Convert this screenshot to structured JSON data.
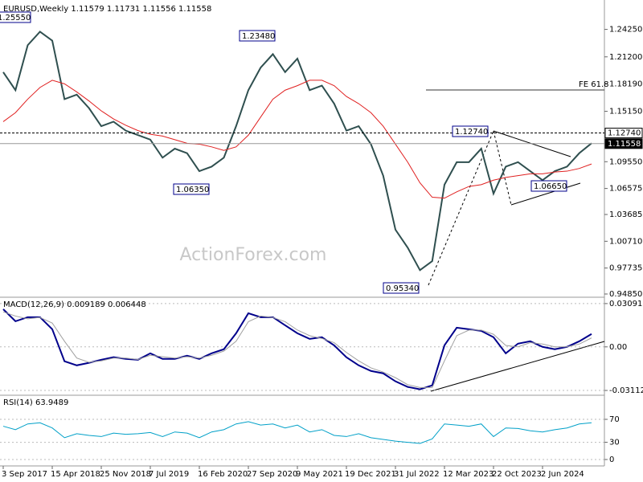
{
  "watermark": "ActionForex.com",
  "chart_data": [
    {
      "type": "line",
      "title": "EURUSD,Weekly  1.11579 1.11731 1.11556 1.11558",
      "categories": [
        "3 Sep 2017",
        null,
        null,
        null,
        "15 Apr 2018",
        null,
        null,
        null,
        "25 Nov 2018",
        null,
        null,
        null,
        "7 Jul 2019",
        null,
        null,
        null,
        "16 Feb 2020",
        null,
        null,
        null,
        "27 Sep 2020",
        null,
        null,
        null,
        "9 May 2021",
        null,
        null,
        null,
        "19 Dec 2021",
        null,
        null,
        null,
        "31 Jul 2022",
        null,
        null,
        null,
        "12 Mar 2023",
        null,
        null,
        null,
        "22 Oct 2023",
        null,
        null,
        null,
        "2 Jun 2024",
        null,
        null,
        null,
        null
      ],
      "series": [
        {
          "color": "#2f4f4f",
          "values": [
            1.195,
            1.175,
            1.225,
            1.24,
            1.23,
            1.165,
            1.17,
            1.155,
            1.135,
            1.14,
            1.13,
            1.125,
            1.12,
            1.1,
            1.11,
            1.105,
            1.085,
            1.09,
            1.1,
            1.135,
            1.175,
            1.2,
            1.215,
            1.195,
            1.21,
            1.175,
            1.18,
            1.16,
            1.13,
            1.135,
            1.115,
            1.08,
            1.02,
            1.0,
            0.975,
            0.985,
            1.07,
            1.095,
            1.095,
            1.11,
            1.06,
            1.09,
            1.095,
            1.085,
            1.075,
            1.085,
            1.09,
            1.105,
            1.116
          ]
        },
        {
          "color": "#e02020",
          "values": [
            1.14,
            1.15,
            1.165,
            1.178,
            1.186,
            1.182,
            1.173,
            1.163,
            1.152,
            1.143,
            1.136,
            1.13,
            1.126,
            1.124,
            1.12,
            1.116,
            1.115,
            1.112,
            1.108,
            1.112,
            1.125,
            1.145,
            1.165,
            1.175,
            1.18,
            1.186,
            1.186,
            1.18,
            1.168,
            1.16,
            1.15,
            1.135,
            1.115,
            1.095,
            1.072,
            1.056,
            1.055,
            1.062,
            1.068,
            1.07,
            1.075,
            1.078,
            1.08,
            1.082,
            1.082,
            1.084,
            1.085,
            1.088,
            1.093
          ]
        }
      ],
      "ylim": [
        0.9467,
        1.2716
      ],
      "yticks": [
        {
          "value": 1.2425,
          "label": "1.24250"
        },
        {
          "value": 1.212,
          "label": "1.21200"
        },
        {
          "value": 1.1819,
          "label": "1.18190"
        },
        {
          "value": 1.1515,
          "label": "1.15150"
        },
        {
          "value": 1.0955,
          "label": "1.09550"
        },
        {
          "value": 1.06575,
          "label": "1.06575"
        },
        {
          "value": 1.03685,
          "label": "1.03685"
        },
        {
          "value": 1.0071,
          "label": "1.00710"
        },
        {
          "value": 0.97735,
          "label": "0.97735"
        },
        {
          "value": 0.9485,
          "label": "0.94850"
        }
      ],
      "levels": [
        {
          "value": 1.1274,
          "label": "1.12740"
        },
        {
          "value": 1.11558,
          "label": "1.11558"
        }
      ],
      "annotations": [
        "1.25550",
        "1.23480",
        "1.06350",
        "0.95340",
        "1.06650",
        "FE 61.8"
      ]
    },
    {
      "type": "line",
      "title": "MACD(12,26,9) 0.009189 0.006448",
      "series": [
        {
          "color": "#00008b",
          "values": [
            0.0269,
            0.0183,
            0.0212,
            0.0212,
            0.0126,
            -0.0103,
            -0.0132,
            -0.0114,
            -0.0092,
            -0.0074,
            -0.0086,
            -0.0092,
            -0.0046,
            -0.0086,
            -0.0086,
            -0.0063,
            -0.0086,
            -0.0046,
            -0.0017,
            0.0097,
            0.024,
            0.0212,
            0.0212,
            0.0154,
            0.0097,
            0.0057,
            0.0069,
            0.0011,
            -0.0074,
            -0.0132,
            -0.0172,
            -0.0189,
            -0.0246,
            -0.0286,
            -0.0303,
            -0.0275,
            0.0011,
            0.0137,
            0.0126,
            0.0114,
            0.0069,
            -0.0046,
            0.0023,
            0.004,
            0.0,
            -0.0017,
            0.0,
            0.004,
            0.0092
          ]
        },
        {
          "color": "#a0a0a0",
          "values": [
            0.025,
            0.022,
            0.02,
            0.021,
            0.017,
            0.004,
            -0.008,
            -0.011,
            -0.01,
            -0.008,
            -0.008,
            -0.009,
            -0.006,
            -0.007,
            -0.008,
            -0.007,
            -0.008,
            -0.006,
            -0.003,
            0.004,
            0.018,
            0.022,
            0.021,
            0.018,
            0.012,
            0.008,
            0.006,
            0.003,
            -0.004,
            -0.01,
            -0.015,
            -0.018,
            -0.022,
            -0.027,
            -0.029,
            -0.029,
            -0.01,
            0.008,
            0.012,
            0.012,
            0.009,
            0.001,
            0.0,
            0.003,
            0.002,
            0.0,
            0.0,
            0.002,
            0.0064
          ]
        }
      ],
      "ylim": [
        -0.0334,
        0.0343
      ],
      "yticks": [
        0.030916,
        {
          "value": 0,
          "label": "0.00"
        },
        -0.031124
      ]
    },
    {
      "type": "line",
      "title": "RSI(14) 63.9489",
      "series": [
        {
          "color": "#00a0c8",
          "values": [
            58,
            52,
            62,
            64,
            55,
            38,
            45,
            42,
            40,
            46,
            44,
            45,
            47,
            40,
            48,
            46,
            38,
            48,
            52,
            62,
            66,
            60,
            62,
            55,
            60,
            48,
            52,
            42,
            40,
            45,
            38,
            35,
            32,
            30,
            28,
            36,
            62,
            60,
            58,
            62,
            40,
            55,
            54,
            50,
            48,
            52,
            55,
            62,
            64
          ]
        }
      ],
      "ylim": [
        -8.4,
        109.2
      ],
      "yticks": [
        70,
        30,
        0
      ]
    }
  ]
}
